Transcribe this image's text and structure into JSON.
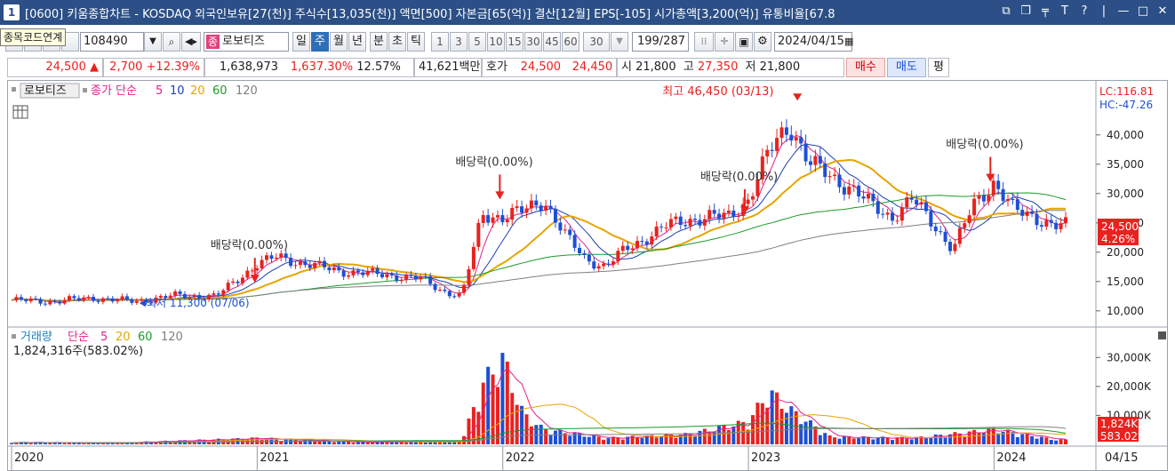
{
  "window": {
    "number": "1",
    "title": "[0600] 키움종합차트 - KOSDAQ 외국인보유[27(천)] 주식수[13,035(천)] 액면[500] 자본금[65(억)] 결산[12월] EPS[-105] 시가총액[3,200(억)] 유통비율[67.8"
  },
  "toolbar": {
    "tooltip": "종목코드연계",
    "code": "108490",
    "name_badge": "종",
    "stock_name": "로보티즈",
    "periods": [
      "일",
      "주",
      "월",
      "년",
      "분",
      "초",
      "틱"
    ],
    "active_period": "주",
    "intervals": [
      "1",
      "3",
      "5",
      "10",
      "15",
      "30",
      "45",
      "60"
    ],
    "interval_select": "30",
    "count": "199",
    "count_total": "/287",
    "date": "2024/04/15"
  },
  "quote": {
    "price": "24,500",
    "change": "2,700",
    "change_pct": "+12.39%",
    "volume": "1,638,973",
    "vol_ratio": "1,637.30%",
    "turnover": "12.57%",
    "amount": "41,621백만",
    "hoga_label": "호가",
    "ask": "24,500",
    "bid": "24,450",
    "open_label": "시",
    "open": "21,800",
    "high_label": "고",
    "high": "27,350",
    "low_label": "저",
    "low": "21,800",
    "buy_label": "매수",
    "sell_label": "매도",
    "eval_label": "평"
  },
  "chart_data": {
    "type": "candlestick",
    "price_panel": {
      "legend_stock": "로보티즈",
      "legend_ma_label": "종가 단순",
      "ma_periods": [
        "5",
        "10",
        "20",
        "60",
        "120"
      ],
      "ma_colors": [
        "#e0218a",
        "#1d3fb8",
        "#e8a400",
        "#1a9c2a",
        "#808080"
      ],
      "lc": "LC:116.81",
      "hc": "HC:-47.26",
      "y_ticks": [
        "40,000",
        "35,000",
        "30,000",
        "25,000",
        "20,000",
        "15,000",
        "10,000"
      ],
      "ylim": [
        8000,
        48000
      ],
      "current_price": "24,500",
      "current_pct": "4.26%",
      "annotations": [
        {
          "label": "최고 46,450 (03/13)",
          "date": "2023-03-13",
          "value": 46450
        },
        {
          "label": "최저 11,300 (07/06)",
          "date": "2020-07-06",
          "value": 11300
        },
        {
          "label": "배당락(0.00%)",
          "date": "2020-12-28",
          "value": 14800
        },
        {
          "label": "배당락(0.00%)",
          "date": "2021-12-27",
          "value": 29000
        },
        {
          "label": "배당락(0.00%)",
          "date": "2022-12-26",
          "value": 26500
        },
        {
          "label": "배당락(0.00%)",
          "date": "2023-12-26",
          "value": 32000
        }
      ],
      "close_series": [
        [
          "2020-01",
          11800
        ],
        [
          "2020-03",
          11600
        ],
        [
          "2020-05",
          12200
        ],
        [
          "2020-07",
          11600
        ],
        [
          "2020-09",
          12600
        ],
        [
          "2020-11",
          12500
        ],
        [
          "2021-01",
          18000
        ],
        [
          "2021-02",
          19200
        ],
        [
          "2021-03",
          18300
        ],
        [
          "2021-05",
          16800
        ],
        [
          "2021-07",
          16200
        ],
        [
          "2021-09",
          15500
        ],
        [
          "2021-10",
          13500
        ],
        [
          "2021-11",
          12500
        ],
        [
          "2021-12",
          26500
        ],
        [
          "2022-01",
          26000
        ],
        [
          "2022-02",
          27000
        ],
        [
          "2022-03",
          29000
        ],
        [
          "2022-04",
          23000
        ],
        [
          "2022-05",
          19000
        ],
        [
          "2022-06",
          17500
        ],
        [
          "2022-07",
          20500
        ],
        [
          "2022-08",
          22500
        ],
        [
          "2022-09",
          24500
        ],
        [
          "2022-10",
          25500
        ],
        [
          "2022-11",
          26000
        ],
        [
          "2022-12",
          26000
        ],
        [
          "2023-01",
          29000
        ],
        [
          "2023-02",
          37000
        ],
        [
          "2023-03",
          42000
        ],
        [
          "2023-04",
          35000
        ],
        [
          "2023-05",
          33000
        ],
        [
          "2023-06",
          31000
        ],
        [
          "2023-07",
          28000
        ],
        [
          "2023-08",
          26000
        ],
        [
          "2023-09",
          29000
        ],
        [
          "2023-10",
          25000
        ],
        [
          "2023-11",
          20500
        ],
        [
          "2023-12",
          28000
        ],
        [
          "2024-01",
          32000
        ],
        [
          "2024-02",
          27000
        ],
        [
          "2024-03",
          26000
        ],
        [
          "2024-04",
          24500
        ]
      ]
    },
    "volume_panel": {
      "legend_label": "거래량",
      "legend_ma_label": "단순",
      "ma_periods": [
        "5",
        "20",
        "60",
        "120"
      ],
      "info": "1,824,316주(583.02%)",
      "y_ticks": [
        "30,000K",
        "20,000K",
        "10,000K"
      ],
      "ylim": [
        0,
        35000
      ],
      "current_volume": "1,824K",
      "current_pct": "583.02%",
      "volume_series": [
        [
          "2020-01",
          800
        ],
        [
          "2020-06",
          600
        ],
        [
          "2020-12",
          2200
        ],
        [
          "2021-01",
          2500
        ],
        [
          "2021-06",
          900
        ],
        [
          "2021-11",
          1200
        ],
        [
          "2021-12",
          24000
        ],
        [
          "2022-01",
          34000
        ],
        [
          "2022-02",
          12000
        ],
        [
          "2022-03",
          6000
        ],
        [
          "2022-06",
          2500
        ],
        [
          "2022-10",
          4000
        ],
        [
          "2023-01",
          9000
        ],
        [
          "2023-02",
          21000
        ],
        [
          "2023-03",
          14000
        ],
        [
          "2023-05",
          3000
        ],
        [
          "2023-09",
          2500
        ],
        [
          "2023-12",
          5000
        ],
        [
          "2024-01",
          6000
        ],
        [
          "2024-04",
          1824
        ]
      ]
    },
    "x_labels": [
      "2020",
      "2021",
      "2022",
      "2023",
      "2024",
      "04/15"
    ]
  }
}
